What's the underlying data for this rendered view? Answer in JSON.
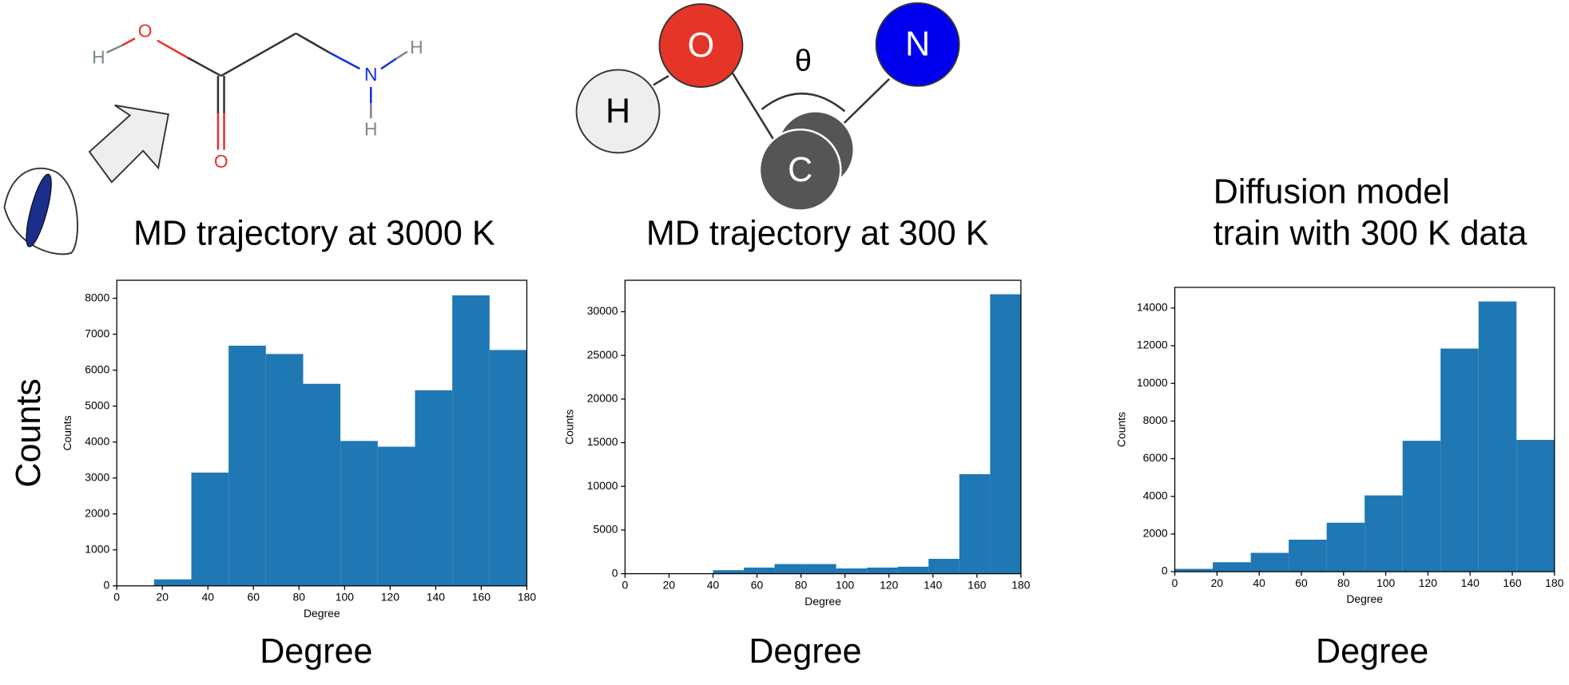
{
  "figure": {
    "y_label": "Counts",
    "x_labels": [
      "Degree",
      "Degree",
      "Degree"
    ]
  },
  "molecule": {
    "atoms": [
      "H",
      "O",
      "O",
      "N",
      "H",
      "H"
    ]
  },
  "angle_diagram": {
    "atoms": [
      "H",
      "O",
      "C",
      "N"
    ],
    "angle": "θ"
  },
  "chart_data": [
    {
      "type": "histogram",
      "title": [
        "MD trajectory at 3000 K"
      ],
      "x_label": "Degree",
      "y_label": "Counts",
      "color": "#1f77b4",
      "bins": [
        0,
        16.36,
        32.73,
        49.09,
        65.45,
        81.82,
        98.18,
        114.55,
        130.91,
        147.27,
        163.64,
        180
      ],
      "values": [
        0,
        180,
        3150,
        6680,
        6450,
        5620,
        4030,
        3870,
        5440,
        8080,
        6560
      ],
      "xlim": [
        0,
        180
      ],
      "ylim": [
        0,
        8500
      ],
      "xticks": [
        0,
        20,
        40,
        60,
        80,
        100,
        120,
        140,
        160,
        180
      ],
      "yticks": [
        0,
        1000,
        2000,
        3000,
        4000,
        5000,
        6000,
        7000,
        8000
      ]
    },
    {
      "type": "histogram",
      "title": [
        "MD trajectory at 300 K"
      ],
      "x_label": "Degree",
      "y_label": "Counts",
      "color": "#1f77b4",
      "bins": [
        40,
        54,
        68,
        82,
        96,
        110,
        124,
        138,
        152,
        166,
        180
      ],
      "values": [
        400,
        700,
        1100,
        1100,
        600,
        700,
        800,
        1700,
        11400,
        32000
      ],
      "xlim": [
        0,
        180
      ],
      "ylim": [
        0,
        33600
      ],
      "xticks": [
        0,
        20,
        40,
        60,
        80,
        100,
        120,
        140,
        160,
        180
      ],
      "yticks": [
        0,
        5000,
        10000,
        15000,
        20000,
        25000,
        30000
      ]
    },
    {
      "type": "histogram",
      "title": [
        "Diffusion model",
        "train with 300 K data"
      ],
      "x_label": "Degree",
      "y_label": "Counts",
      "color": "#1f77b4",
      "bins": [
        0,
        18,
        36,
        54,
        72,
        90,
        108,
        126,
        144,
        162,
        180
      ],
      "values": [
        150,
        500,
        1000,
        1700,
        2600,
        4050,
        6950,
        11850,
        14350,
        7000
      ],
      "xlim": [
        0,
        180
      ],
      "ylim": [
        0,
        15100
      ],
      "xticks": [
        0,
        20,
        40,
        60,
        80,
        100,
        120,
        140,
        160,
        180
      ],
      "yticks": [
        0,
        2000,
        4000,
        6000,
        8000,
        10000,
        12000,
        14000
      ]
    }
  ]
}
